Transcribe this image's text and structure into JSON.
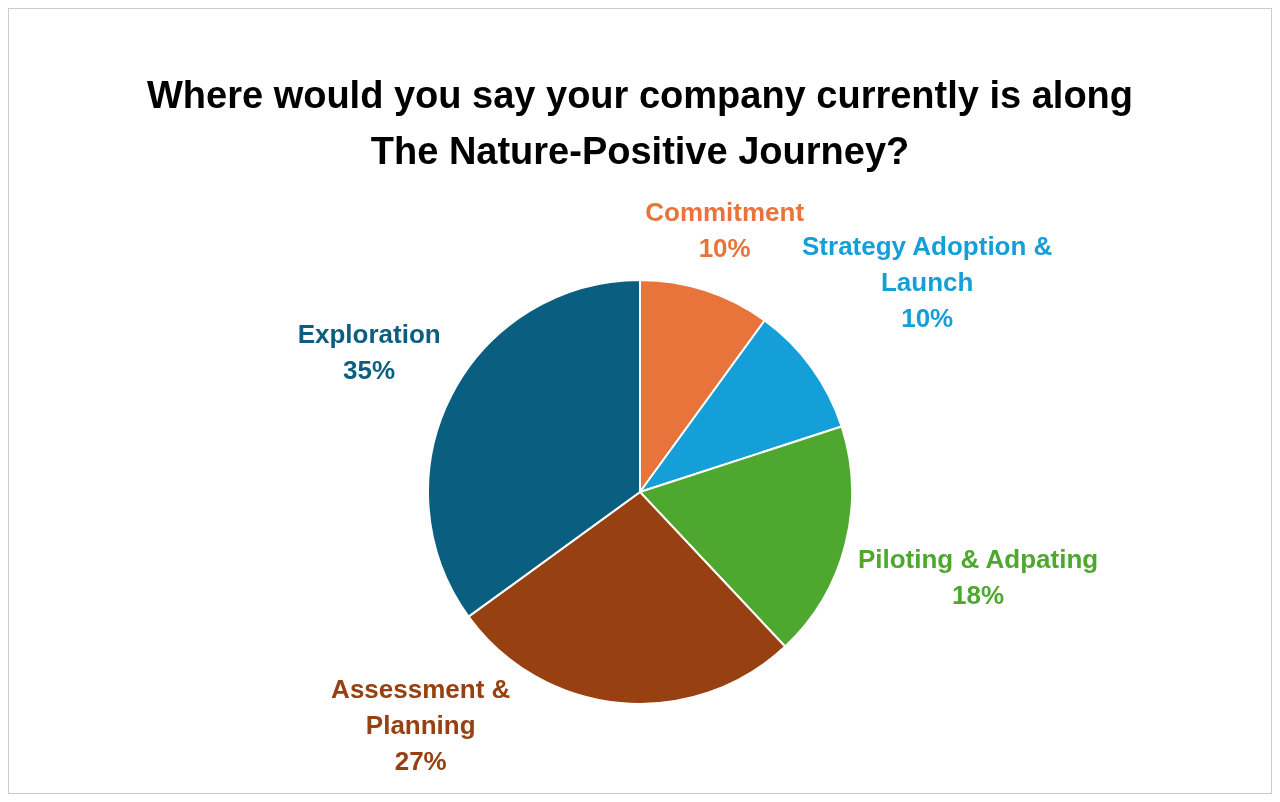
{
  "chart_data": {
    "type": "pie",
    "title": "Where would you say your company currently is along The Nature-Positive Journey?",
    "categories": [
      "Commitment",
      "Strategy Adoption & Launch",
      "Piloting & Adpating",
      "Assessment & Planning",
      "Exploration"
    ],
    "values": [
      10,
      10,
      18,
      27,
      35
    ],
    "value_labels": [
      "10%",
      "10%",
      "18%",
      "27%",
      "35%"
    ],
    "colors": [
      "#e8743b",
      "#149fd8",
      "#4ea72e",
      "#974011",
      "#0a5f80"
    ],
    "legend": false
  }
}
